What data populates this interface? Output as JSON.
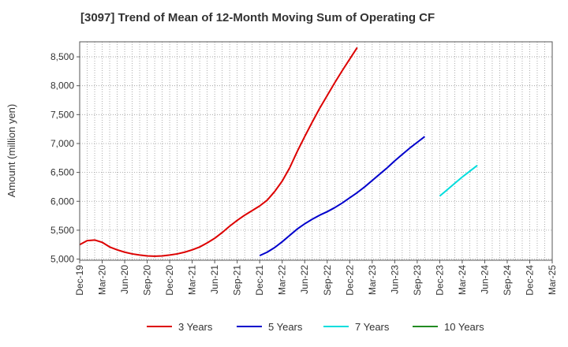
{
  "chart_data": {
    "type": "line",
    "title": "[3097]  Trend of Mean of 12-Month Moving Sum of Operating CF",
    "xlabel": "",
    "ylabel": "Amount (million yen)",
    "ylim": [
      4980,
      8760
    ],
    "yticks": [
      5000,
      5500,
      6000,
      6500,
      7000,
      7500,
      8000,
      8500
    ],
    "ytick_labels": [
      "5,000",
      "5,500",
      "6,000",
      "6,500",
      "7,000",
      "7,500",
      "8,000",
      "8,500"
    ],
    "xticks": [
      "Dec-19",
      "Mar-20",
      "Jun-20",
      "Sep-20",
      "Dec-20",
      "Mar-21",
      "Jun-21",
      "Sep-21",
      "Dec-21",
      "Mar-22",
      "Jun-22",
      "Sep-22",
      "Dec-22",
      "Mar-23",
      "Jun-23",
      "Sep-23",
      "Dec-23",
      "Mar-24",
      "Jun-24",
      "Sep-24",
      "Dec-24",
      "Mar-25"
    ],
    "grid": true,
    "legend_position": "bottom",
    "series": [
      {
        "name": "3 Years",
        "color": "#dd0000",
        "x_start_index": 0,
        "values": [
          5250,
          5320,
          5330,
          5290,
          5210,
          5160,
          5120,
          5090,
          5070,
          5055,
          5050,
          5055,
          5070,
          5090,
          5120,
          5160,
          5210,
          5280,
          5360,
          5460,
          5570,
          5670,
          5760,
          5840,
          5920,
          6020,
          6170,
          6350,
          6580,
          6860,
          7120,
          7370,
          7610,
          7830,
          8050,
          8260,
          8460,
          8660
        ]
      },
      {
        "name": "5 Years",
        "color": "#0000cc",
        "x_start_index": 24,
        "values": [
          5060,
          5120,
          5200,
          5300,
          5410,
          5520,
          5610,
          5690,
          5760,
          5820,
          5890,
          5970,
          6060,
          6150,
          6250,
          6360,
          6470,
          6580,
          6700,
          6810,
          6920,
          7020,
          7120
        ]
      },
      {
        "name": "7 Years",
        "color": "#00dddd",
        "x_start_index": 48,
        "values": [
          6090,
          6200,
          6310,
          6420,
          6520,
          6620
        ]
      },
      {
        "name": "10 Years",
        "color": "#228b22",
        "x_start_index": 0,
        "values": []
      }
    ]
  }
}
